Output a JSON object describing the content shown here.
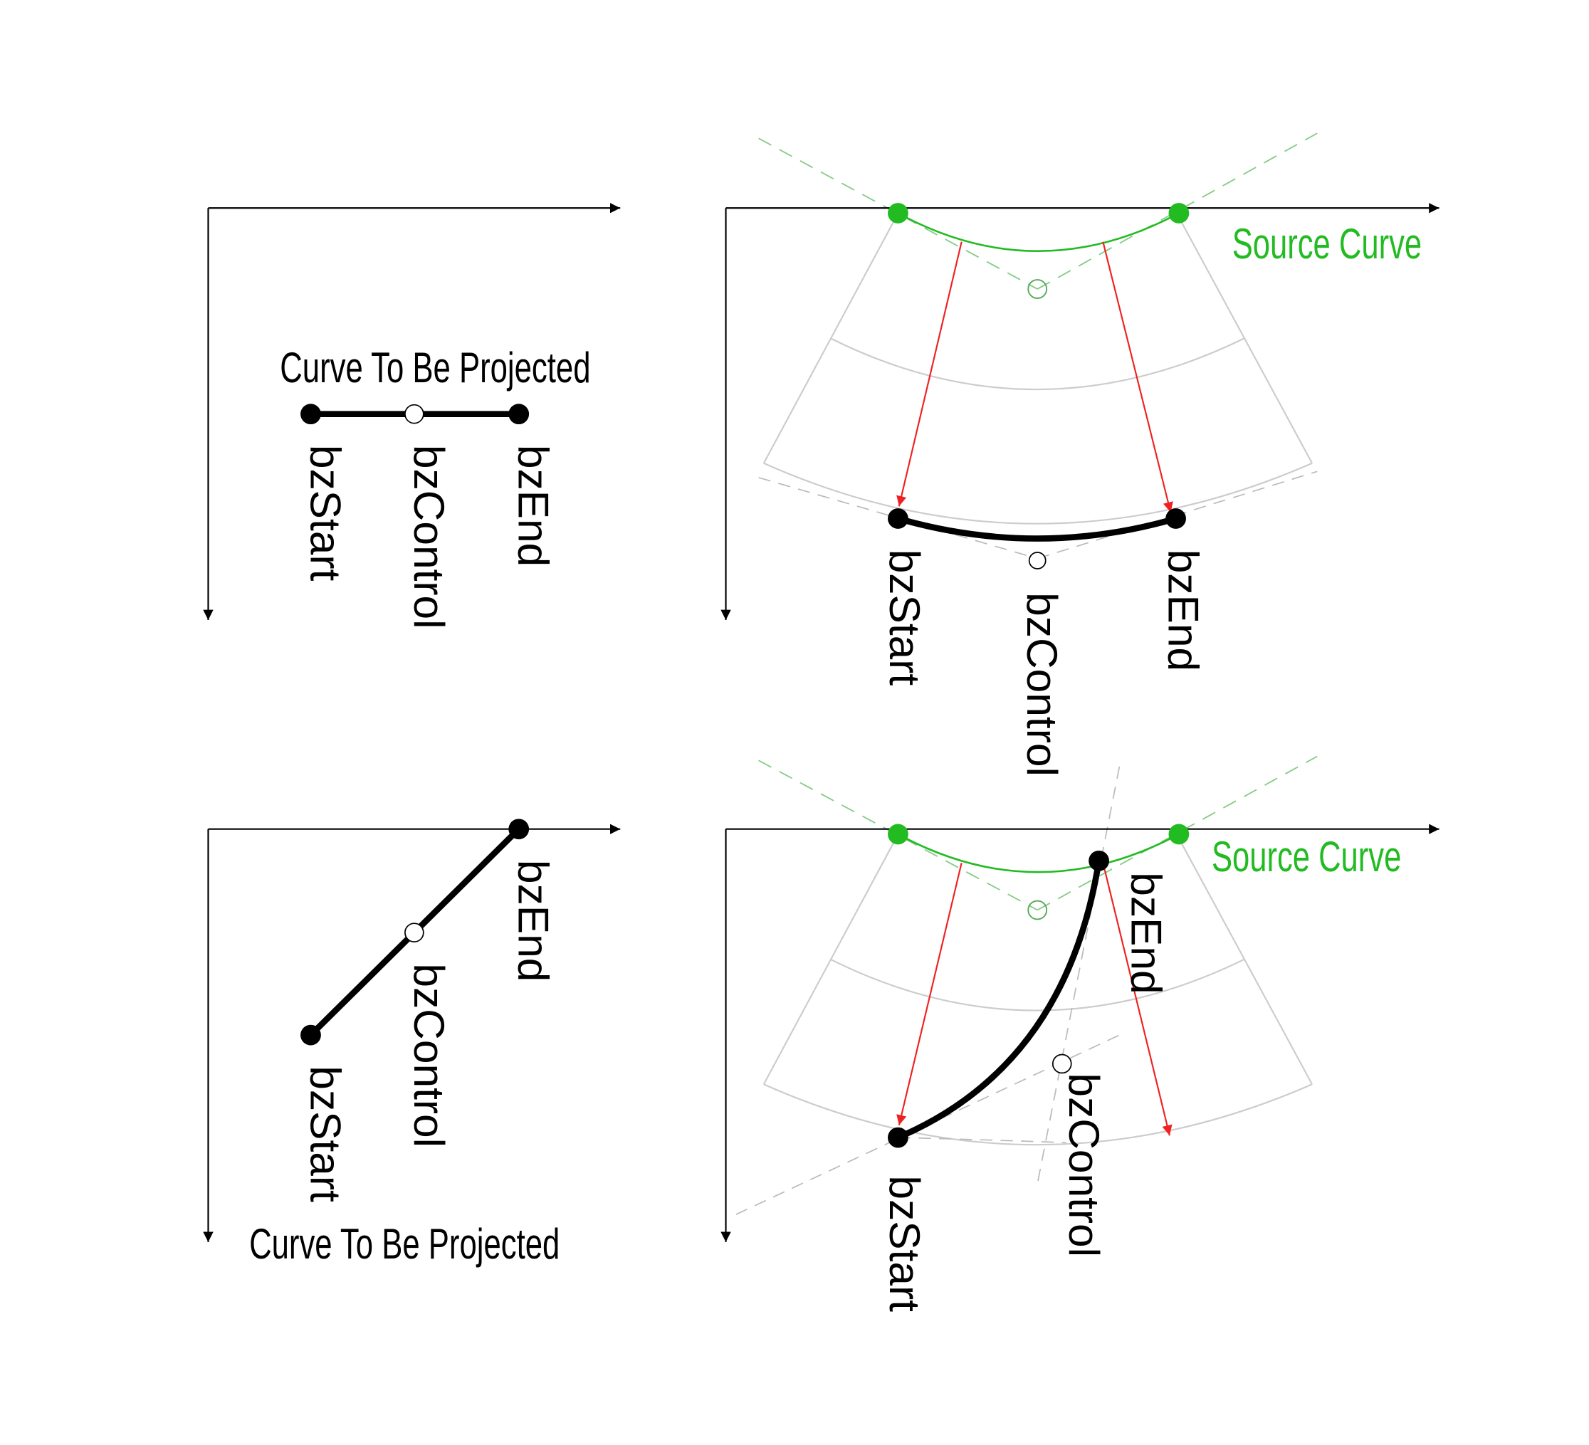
{
  "labels": {
    "start": "bzStart",
    "control": "bzControl",
    "end": "bzEnd",
    "projected_curve": "Curve To Be Projected",
    "source_curve": "Source Curve"
  },
  "colors": {
    "axis": "#000000",
    "curve": "#000000",
    "source_curve": "#22bb22",
    "source_points": "#22bb22",
    "source_guides": "#88cc88",
    "projection_arrows": "#ee2222",
    "grid": "#cccccc",
    "guides": "#bbbbbb"
  }
}
